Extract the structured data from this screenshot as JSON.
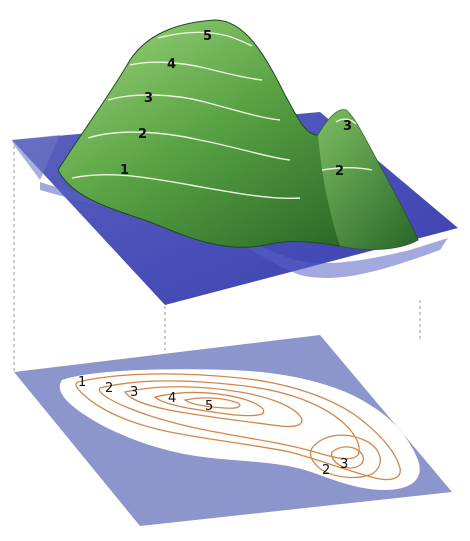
{
  "mountain_labels": {
    "main_1": "1",
    "main_2": "2",
    "main_3": "3",
    "main_4": "4",
    "main_5": "5",
    "small_2": "2",
    "small_3": "3"
  },
  "map_labels": {
    "l1": "1",
    "l2": "2",
    "l3": "3",
    "l4": "4",
    "l5": "5",
    "r2": "2",
    "r3": "3"
  },
  "colors": {
    "water": "#6f78c6",
    "water_dark": "#3d3fa8",
    "hill_light": "#7fc06a",
    "hill_dark": "#2f6d2a",
    "contour_top": "#e8f2d8",
    "map_sheet": "#8c95cc",
    "map_land": "#ffffff",
    "map_contour": "#d2874a",
    "guide_line": "#999999"
  }
}
